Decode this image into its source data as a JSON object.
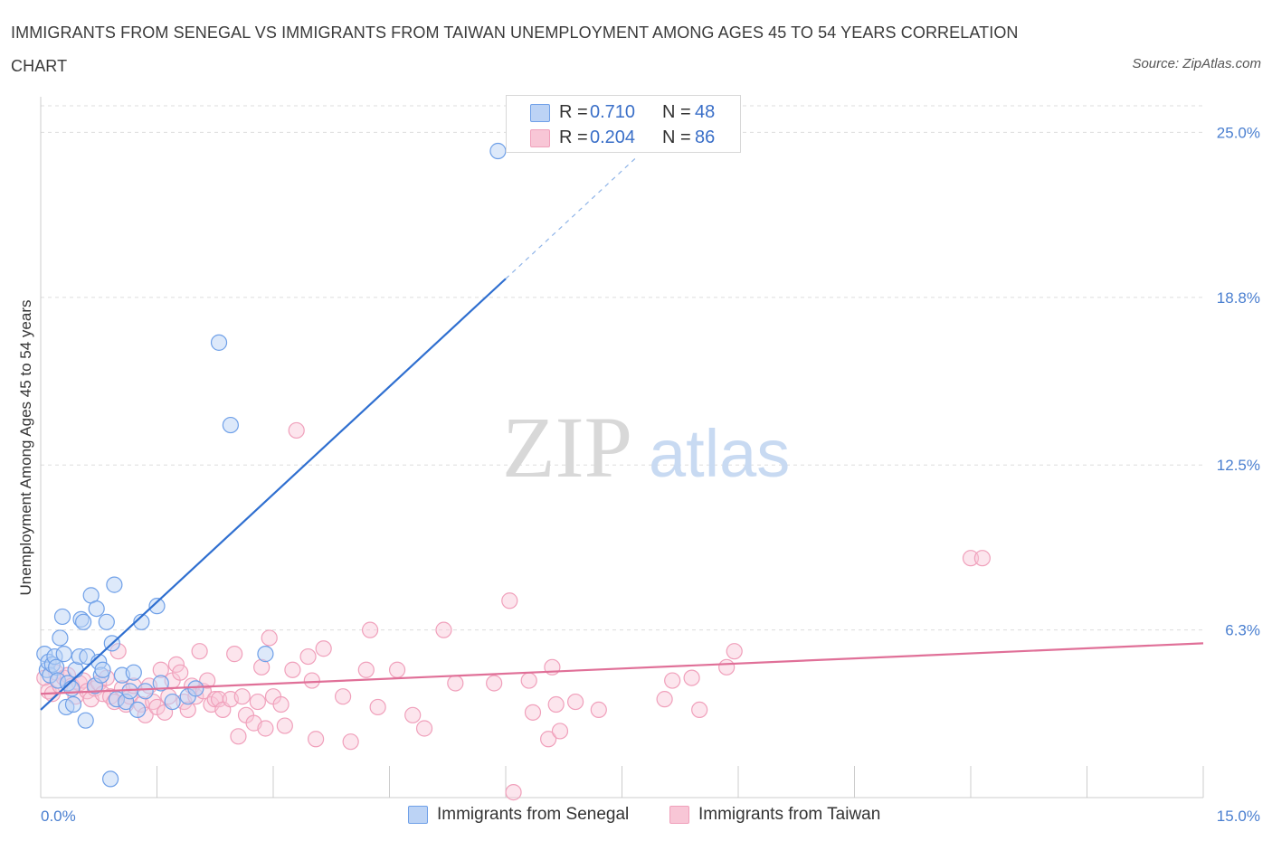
{
  "title": "IMMIGRANTS FROM SENEGAL VS IMMIGRANTS FROM TAIWAN UNEMPLOYMENT AMONG AGES 45 TO 54 YEARS CORRELATION CHART",
  "source": "Source: ZipAtlas.com",
  "watermark": {
    "zip": "ZIP",
    "atlas": "atlas"
  },
  "legend_top": {
    "series1": {
      "r_label": "R =",
      "r_value": "0.710",
      "n_label": "N =",
      "n_value": "48"
    },
    "series2": {
      "r_label": "R =",
      "r_value": "0.204",
      "n_label": "N =",
      "n_value": "86"
    }
  },
  "legend_bottom": {
    "series1": "Immigrants from Senegal",
    "series2": "Immigrants from Taiwan"
  },
  "chart_data": {
    "type": "scatter",
    "title": "IMMIGRANTS FROM SENEGAL VS IMMIGRANTS FROM TAIWAN UNEMPLOYMENT AMONG AGES 45 TO 54 YEARS CORRELATION CHART",
    "xlabel": "",
    "ylabel": "Unemployment Among Ages 45 to 54 years",
    "xlim": [
      0,
      15
    ],
    "ylim": [
      0,
      26
    ],
    "x_tick_labels": [
      "0.0%",
      "15.0%"
    ],
    "y_ticks": [
      6.3,
      12.5,
      18.8,
      25.0
    ],
    "y_tick_labels": [
      "6.3%",
      "12.5%",
      "18.8%",
      "25.0%"
    ],
    "grid": true,
    "legend_position": "bottom",
    "colors": {
      "senegal": "#6fa0e8",
      "taiwan": "#f0a0bb",
      "senegal_line": "#2f6fd0",
      "taiwan_line": "#e07098",
      "tick_text": "#4a7fd0"
    },
    "series": [
      {
        "name": "Immigrants from Senegal",
        "r": 0.71,
        "n": 48,
        "trend": {
          "x0": 0.0,
          "y0": 3.3,
          "x1": 6.0,
          "y1": 19.5,
          "dash_x1": 7.7,
          "dash_y1": 24.1
        },
        "points": [
          [
            0.05,
            5.4
          ],
          [
            0.08,
            4.8
          ],
          [
            0.1,
            5.1
          ],
          [
            0.12,
            4.6
          ],
          [
            0.15,
            5.0
          ],
          [
            0.18,
            5.3
          ],
          [
            0.2,
            4.9
          ],
          [
            0.22,
            4.4
          ],
          [
            0.25,
            6.0
          ],
          [
            0.28,
            6.8
          ],
          [
            0.3,
            5.4
          ],
          [
            0.33,
            3.4
          ],
          [
            0.35,
            4.3
          ],
          [
            0.4,
            4.1
          ],
          [
            0.42,
            3.5
          ],
          [
            0.45,
            4.8
          ],
          [
            0.5,
            5.3
          ],
          [
            0.52,
            6.7
          ],
          [
            0.55,
            6.6
          ],
          [
            0.58,
            2.9
          ],
          [
            0.6,
            5.3
          ],
          [
            0.65,
            7.6
          ],
          [
            0.7,
            4.2
          ],
          [
            0.72,
            7.1
          ],
          [
            0.75,
            5.1
          ],
          [
            0.78,
            4.6
          ],
          [
            0.8,
            4.8
          ],
          [
            0.85,
            6.6
          ],
          [
            0.9,
            0.7
          ],
          [
            0.92,
            5.8
          ],
          [
            0.95,
            8.0
          ],
          [
            0.98,
            3.7
          ],
          [
            1.05,
            4.6
          ],
          [
            1.1,
            3.6
          ],
          [
            1.15,
            4.0
          ],
          [
            1.2,
            4.7
          ],
          [
            1.25,
            3.3
          ],
          [
            1.3,
            6.6
          ],
          [
            1.35,
            4.0
          ],
          [
            1.5,
            7.2
          ],
          [
            1.55,
            4.3
          ],
          [
            1.7,
            3.6
          ],
          [
            1.9,
            3.8
          ],
          [
            2.0,
            4.1
          ],
          [
            2.3,
            17.1
          ],
          [
            2.45,
            14.0
          ],
          [
            2.9,
            5.4
          ],
          [
            5.9,
            24.3
          ]
        ]
      },
      {
        "name": "Immigrants from Taiwan",
        "r": 0.204,
        "n": 86,
        "trend": {
          "x0": 0.0,
          "y0": 3.9,
          "x1": 15.0,
          "y1": 5.8
        },
        "points": [
          [
            0.05,
            4.5
          ],
          [
            0.1,
            4.0
          ],
          [
            0.15,
            3.9
          ],
          [
            0.2,
            4.7
          ],
          [
            0.25,
            4.2
          ],
          [
            0.3,
            4.5
          ],
          [
            0.35,
            4.6
          ],
          [
            0.4,
            4.2
          ],
          [
            0.45,
            3.8
          ],
          [
            0.5,
            4.3
          ],
          [
            0.55,
            4.4
          ],
          [
            0.6,
            4.0
          ],
          [
            0.65,
            3.7
          ],
          [
            0.7,
            4.1
          ],
          [
            0.75,
            4.3
          ],
          [
            0.8,
            3.9
          ],
          [
            0.85,
            4.5
          ],
          [
            0.9,
            3.8
          ],
          [
            0.95,
            3.6
          ],
          [
            1.0,
            5.5
          ],
          [
            1.05,
            4.1
          ],
          [
            1.1,
            3.5
          ],
          [
            1.15,
            3.8
          ],
          [
            1.2,
            4.2
          ],
          [
            1.3,
            3.5
          ],
          [
            1.35,
            3.1
          ],
          [
            1.4,
            4.2
          ],
          [
            1.45,
            3.6
          ],
          [
            1.5,
            3.4
          ],
          [
            1.55,
            4.8
          ],
          [
            1.6,
            3.2
          ],
          [
            1.65,
            3.8
          ],
          [
            1.7,
            4.4
          ],
          [
            1.75,
            5.0
          ],
          [
            1.8,
            4.7
          ],
          [
            1.85,
            3.6
          ],
          [
            1.9,
            3.3
          ],
          [
            1.95,
            4.2
          ],
          [
            2.0,
            3.8
          ],
          [
            2.05,
            5.5
          ],
          [
            2.1,
            4.0
          ],
          [
            2.15,
            4.4
          ],
          [
            2.2,
            3.5
          ],
          [
            2.25,
            3.7
          ],
          [
            2.3,
            3.7
          ],
          [
            2.35,
            3.3
          ],
          [
            2.45,
            3.7
          ],
          [
            2.5,
            5.4
          ],
          [
            2.55,
            2.3
          ],
          [
            2.6,
            3.8
          ],
          [
            2.65,
            3.1
          ],
          [
            2.75,
            2.8
          ],
          [
            2.8,
            3.6
          ],
          [
            2.85,
            4.9
          ],
          [
            2.9,
            2.6
          ],
          [
            2.95,
            6.0
          ],
          [
            3.0,
            3.8
          ],
          [
            3.1,
            3.5
          ],
          [
            3.15,
            2.7
          ],
          [
            3.25,
            4.8
          ],
          [
            3.3,
            13.8
          ],
          [
            3.45,
            5.3
          ],
          [
            3.5,
            4.4
          ],
          [
            3.55,
            2.2
          ],
          [
            3.65,
            5.6
          ],
          [
            3.9,
            3.8
          ],
          [
            4.0,
            2.1
          ],
          [
            4.2,
            4.8
          ],
          [
            4.25,
            6.3
          ],
          [
            4.35,
            3.4
          ],
          [
            4.6,
            4.8
          ],
          [
            4.8,
            3.1
          ],
          [
            4.95,
            2.6
          ],
          [
            5.2,
            6.3
          ],
          [
            5.35,
            4.3
          ],
          [
            5.85,
            4.3
          ],
          [
            6.05,
            7.4
          ],
          [
            6.3,
            4.4
          ],
          [
            6.35,
            3.2
          ],
          [
            6.55,
            2.2
          ],
          [
            6.6,
            4.9
          ],
          [
            6.7,
            2.5
          ],
          [
            6.9,
            3.6
          ],
          [
            7.2,
            3.3
          ],
          [
            8.4,
            4.5
          ],
          [
            8.95,
            5.5
          ]
        ]
      }
    ],
    "extra_taiwan_points": [
      [
        6.65,
        3.5
      ],
      [
        6.1,
        0.2
      ],
      [
        8.05,
        3.7
      ],
      [
        8.15,
        4.4
      ],
      [
        8.5,
        3.3
      ],
      [
        8.85,
        4.9
      ],
      [
        12.0,
        9.0
      ],
      [
        12.15,
        9.0
      ]
    ]
  }
}
